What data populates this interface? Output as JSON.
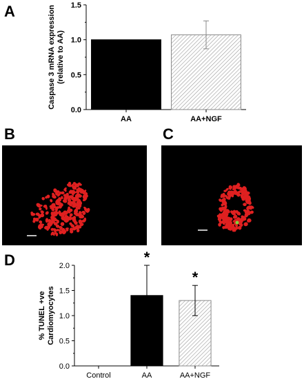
{
  "panels": {
    "a": "A",
    "b": "B",
    "c": "C",
    "d": "D"
  },
  "chart_data": [
    {
      "type": "bar",
      "panel": "A",
      "ylabel_lines": [
        "Caspase 3 mRNA expression",
        "(relative to AA)"
      ],
      "categories": [
        "AA",
        "AA+NGF"
      ],
      "values": [
        1.0,
        1.07
      ],
      "errors": [
        null,
        0.2
      ],
      "significance": [
        "",
        ""
      ],
      "fills": [
        "solid",
        "hatched"
      ],
      "ylim": [
        0,
        1.5
      ],
      "yticks": [
        "0.0",
        "0.5",
        "1.0",
        "1.5"
      ],
      "colors": {
        "solid": "#000000",
        "hatch": "#9a9a9a"
      }
    },
    {
      "type": "bar",
      "panel": "D",
      "ylabel_lines": [
        "% TUNEL +ve",
        "Cardiomyocytes"
      ],
      "categories": [
        "Control",
        "AA",
        "AA+NGF"
      ],
      "values": [
        0,
        1.4,
        1.3
      ],
      "errors": [
        null,
        0.6,
        0.3
      ],
      "significance": [
        "",
        "*",
        "*"
      ],
      "fills": [
        "none",
        "solid",
        "hatched"
      ],
      "ylim": [
        0,
        2.0
      ],
      "yticks": [
        "0.0",
        "0.5",
        "1.0",
        "1.5",
        "2.0"
      ],
      "colors": {
        "solid": "#000000",
        "hatch": "#9a9a9a"
      }
    }
  ],
  "micrographs": {
    "b": {
      "background": "#000000",
      "cell_color": "#e02020",
      "scale_bar_label": ""
    },
    "c": {
      "background": "#000000",
      "cell_color": "#e02020",
      "accent_color": "#7fd23a",
      "scale_bar_label": ""
    }
  }
}
